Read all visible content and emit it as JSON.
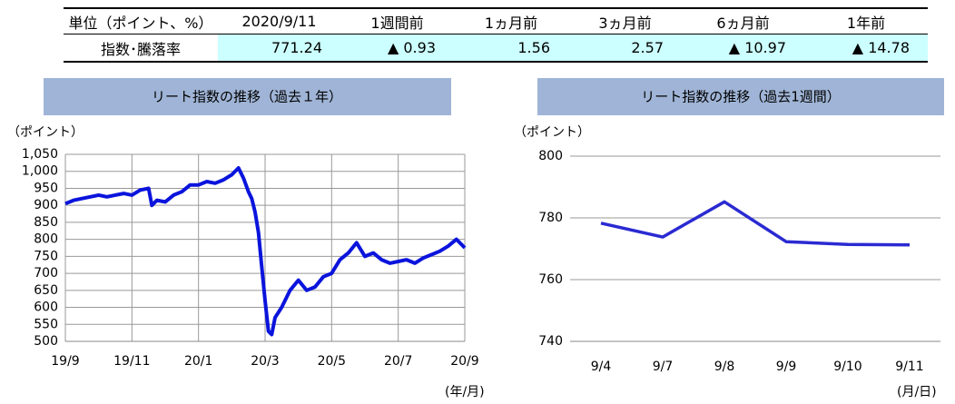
{
  "table": {
    "header": [
      "単位（ポイント、%）",
      "2020/9/11",
      "1週間前",
      "1ヵ月前",
      "3ヵ月前",
      "6ヵ月前",
      "1年前"
    ],
    "rows": [
      [
        "指数･騰落率",
        "771.24",
        "▲ 0.93",
        "1.56",
        "2.57",
        "▲ 10.97",
        "▲ 14.78"
      ]
    ]
  },
  "chart_data": [
    {
      "type": "line",
      "title": "リート指数の推移（過去１年）",
      "y_label": "（ポイント）",
      "x_label": "(年/月)",
      "x": [
        0,
        0.25,
        0.5,
        0.75,
        1,
        1.25,
        1.5,
        1.75,
        2,
        2.25,
        2.5,
        2.6,
        2.75,
        3,
        3.25,
        3.5,
        3.75,
        4,
        4.25,
        4.5,
        4.75,
        5,
        5.2,
        5.35,
        5.5,
        5.6,
        5.7,
        5.8,
        5.9,
        6,
        6.1,
        6.2,
        6.3,
        6.5,
        6.75,
        7,
        7.25,
        7.5,
        7.75,
        8,
        8.25,
        8.5,
        8.75,
        9,
        9.25,
        9.5,
        9.75,
        10,
        10.25,
        10.5,
        10.75,
        11,
        11.25,
        11.5,
        11.75,
        12
      ],
      "values": [
        905,
        915,
        920,
        925,
        930,
        925,
        930,
        935,
        930,
        945,
        950,
        900,
        915,
        910,
        930,
        940,
        960,
        960,
        970,
        965,
        975,
        990,
        1010,
        980,
        940,
        920,
        880,
        820,
        720,
        620,
        530,
        520,
        570,
        600,
        650,
        680,
        650,
        660,
        690,
        700,
        740,
        760,
        790,
        750,
        760,
        740,
        730,
        735,
        740,
        730,
        745,
        755,
        765,
        780,
        800,
        775
      ],
      "color": "#0a14dc",
      "xlim": [
        0,
        12
      ],
      "xticks": [
        {
          "value": 0,
          "label": "19/9"
        },
        {
          "value": 2,
          "label": "19/11"
        },
        {
          "value": 4,
          "label": "20/1"
        },
        {
          "value": 6,
          "label": "20/3"
        },
        {
          "value": 8,
          "label": "20/5"
        },
        {
          "value": 10,
          "label": "20/7"
        },
        {
          "value": 12,
          "label": "20/9"
        }
      ],
      "ylim": [
        500,
        1050
      ],
      "yticks": [
        500,
        550,
        600,
        650,
        700,
        750,
        800,
        850,
        900,
        950,
        {
          "value": 1000,
          "label": "1,000"
        },
        {
          "value": 1050,
          "label": "1,050"
        }
      ],
      "grid": true
    },
    {
      "type": "line",
      "title": "リート指数の推移（過去1週間）",
      "y_label": "（ポイント）",
      "x_label": "(月/日)",
      "categories": [
        "9/4",
        "9/7",
        "9/8",
        "9/9",
        "9/10",
        "9/11"
      ],
      "values": [
        778.3,
        773.8,
        785.2,
        772.3,
        771.4,
        771.24
      ],
      "color": "#2a2ad2",
      "ylim": [
        740,
        800
      ],
      "yticks": [
        740,
        760,
        780,
        800
      ],
      "grid": true
    }
  ]
}
